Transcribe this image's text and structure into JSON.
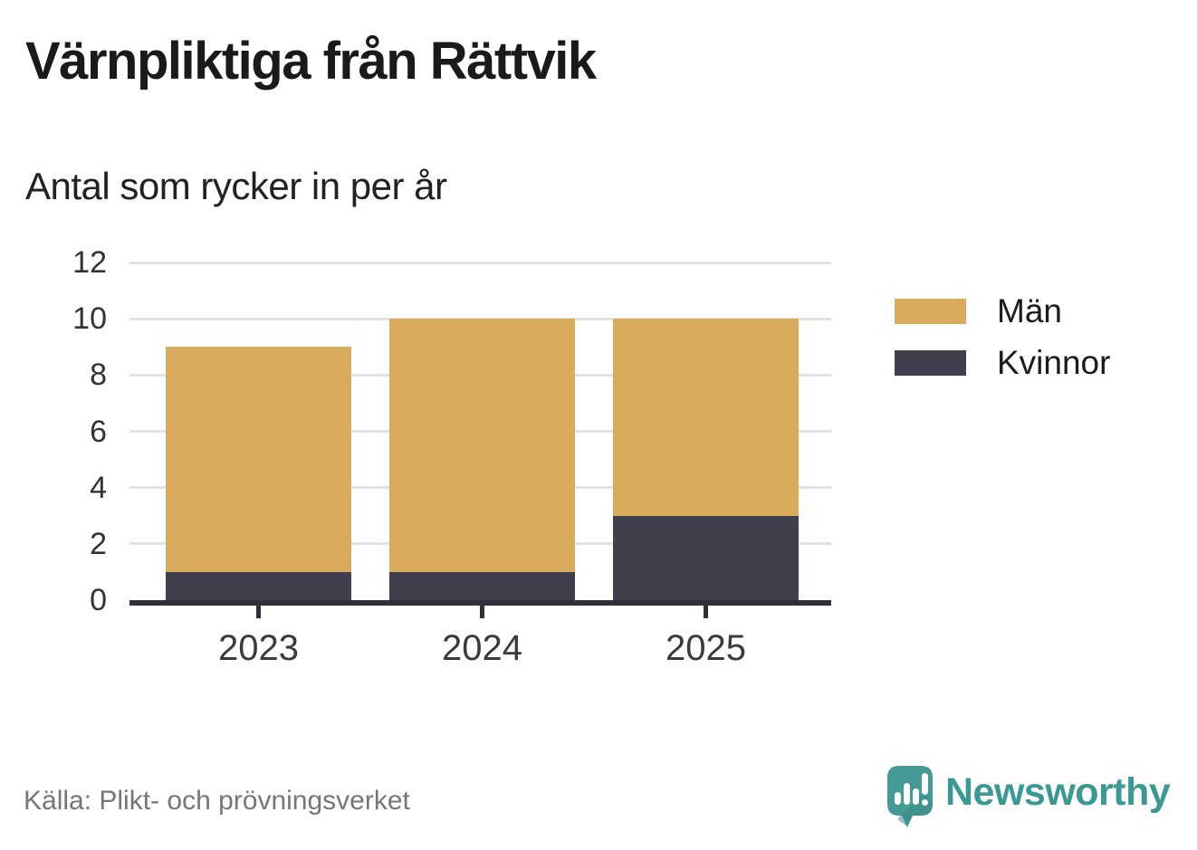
{
  "chart_data": {
    "type": "bar",
    "stacked": true,
    "title": "Värnpliktiga från Rättvik",
    "subtitle": "Antal som rycker in per år",
    "categories": [
      "2023",
      "2024",
      "2025"
    ],
    "series": [
      {
        "name": "Män",
        "color": "#d9ab5c",
        "values": [
          8,
          9,
          7
        ]
      },
      {
        "name": "Kvinnor",
        "color": "#413e4d",
        "values": [
          1,
          1,
          3
        ]
      }
    ],
    "stack_bottom_to_top": [
      "Kvinnor",
      "Män"
    ],
    "totals": [
      9,
      10,
      10
    ],
    "ylim": [
      0,
      12
    ],
    "yticks": [
      0,
      2,
      4,
      6,
      8,
      10,
      12
    ],
    "xlabel": "",
    "ylabel": "",
    "grid": true,
    "legend_position": "right"
  },
  "footer": {
    "source": "Källa: Plikt- och prövningsverket",
    "brand": "Newsworthy"
  },
  "colors": {
    "men": "#d9ab5c",
    "women": "#413e4d",
    "grid": "#e2e2e2",
    "axis": "#322f3b",
    "brand_teal": "#3a9a93",
    "brand_icon_teal": "#459a96"
  }
}
